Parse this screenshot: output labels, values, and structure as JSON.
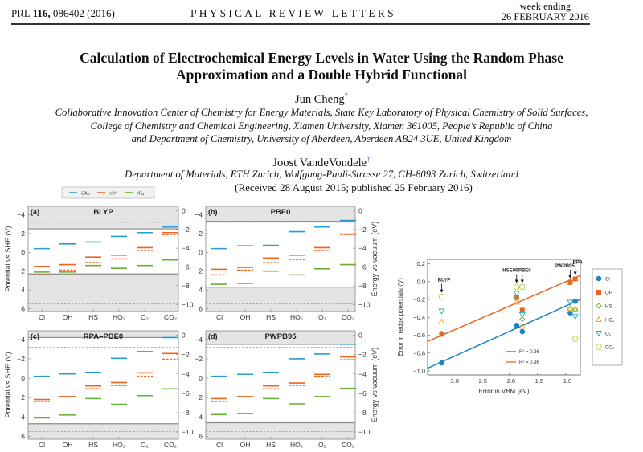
{
  "header": {
    "journal_ref_prefix": "PRL ",
    "volume": "116,",
    "journal_ref_suffix": " 086402 (2016)",
    "journal_name": "PHYSICAL REVIEW LETTERS",
    "week_ending": "week ending",
    "date": "26 FEBRUARY 2016"
  },
  "article": {
    "title_line1": "Calculation of Electrochemical Energy Levels in Water Using the Random Phase",
    "title_line2": "Approximation and a Double Hybrid Functional",
    "author1": "Jun Cheng",
    "author1_mark": "*",
    "affil1_line1": "Collaborative Innovation Center of Chemistry for Energy Materials, State Key Laboratory of Physical Chemistry of Solid Surfaces,",
    "affil1_line2": "College of Chemistry and Chemical Engineering, Xiamen University, Xiamen 361005, People’s Republic of China",
    "affil1_line3": "and Department of Chemistry, University of Aberdeen, Aberdeen AB24 3UE, United Kingdom",
    "author2": "Joost VandeVondele",
    "author2_mark": "†",
    "affil2": "Department of Materials, ETH Zurich, Wolfgang-Pauli-Strasse 27, CH-8093 Zurich, Switzerland",
    "received": "(Received 28 August 2015; published 25 February 2016)"
  },
  "colors": {
    "blue": "#2b9bd3",
    "orange": "#f0641e",
    "green": "#66b032",
    "shade": "#e4e4e4",
    "edge": "#8a8a8a"
  },
  "chart_data": [
    {
      "type": "bar",
      "panels_shared": {
        "categories": [
          "Cl",
          "OH",
          "HS",
          "HO₂",
          "O₂",
          "CO₂"
        ],
        "ylabel": "Potential vs SHE (V)",
        "y2label": "Energy vs vacuum (eV)",
        "yticks": [
          -4,
          -2,
          0,
          2,
          4,
          6
        ],
        "y2ticks": [
          0,
          -2,
          -4,
          -6,
          -8,
          -10
        ],
        "ylim": [
          -4.9,
          6.3
        ],
        "legend": [
          {
            "label": "−EA",
            "sub": "O",
            "color": "#2b9bd3"
          },
          {
            "label": "−eU°",
            "sub": "",
            "color": "#f0641e"
          },
          {
            "label": "−IP",
            "sub": "R",
            "color": "#66b032"
          }
        ],
        "legend_placement": "top",
        "dashed_levels": [
          -3.2,
          5.5
        ]
      },
      "panels": [
        {
          "tag": "(a)",
          "title": "BLYP",
          "cbm": -2.5,
          "vbm": 2.3,
          "neg_EA_O": [
            -0.4,
            -0.9,
            -1.1,
            -1.7,
            -2.1,
            -2.7
          ],
          "neg_eU": [
            1.5,
            1.3,
            0.5,
            0.3,
            -0.5,
            -2.1
          ],
          "neg_eU_dashed": [
            2.4,
            1.9,
            1.1,
            0.7,
            -0.2,
            -1.9
          ],
          "neg_IP_R": [
            2.1,
            2.1,
            1.4,
            1.7,
            1.4,
            0.8
          ]
        },
        {
          "tag": "(b)",
          "title": "PBE0",
          "cbm": -3.3,
          "vbm": 3.7,
          "neg_EA_O": [
            -0.4,
            -0.7,
            -0.75,
            -2.2,
            -2.7,
            -3.4
          ],
          "neg_eU": [
            1.8,
            1.6,
            0.6,
            0.3,
            -0.5,
            -1.95
          ],
          "neg_eU_dashed": [
            2.4,
            1.9,
            1.1,
            0.75,
            -0.2,
            -1.9
          ],
          "neg_IP_R": [
            3.4,
            3.3,
            2.0,
            2.4,
            1.75,
            1.3
          ]
        },
        {
          "tag": "(c)",
          "title": "RPA–PBE0",
          "cbm": -4.2,
          "vbm": 4.7,
          "neg_EA_O": [
            -0.2,
            -0.45,
            -0.6,
            -2.05,
            -2.75,
            -4.2
          ],
          "neg_eU": [
            2.2,
            1.9,
            0.8,
            0.45,
            -0.55,
            -2.55
          ],
          "neg_eU_dashed": [
            2.4,
            1.9,
            1.1,
            0.75,
            -0.2,
            -1.95
          ],
          "neg_IP_R": [
            4.1,
            3.8,
            2.1,
            2.7,
            1.8,
            1.1
          ]
        },
        {
          "tag": "(d)",
          "title": "PWPB95",
          "cbm": -3.5,
          "vbm": 4.6,
          "neg_EA_O": [
            -0.2,
            -0.4,
            -0.6,
            -2.0,
            -2.5,
            -3.5
          ],
          "neg_eU": [
            2.1,
            1.9,
            0.8,
            0.5,
            -0.4,
            -2.2
          ],
          "neg_eU_dashed": [
            2.4,
            1.9,
            1.1,
            0.75,
            -0.2,
            -1.9
          ],
          "neg_IP_R": [
            3.75,
            3.65,
            2.1,
            2.65,
            1.9,
            1.05
          ]
        }
      ]
    },
    {
      "type": "scatter",
      "xlabel": "Error in VBM (eV)",
      "ylabel": "Error in redox potentials (V)",
      "xlim": [
        -3.45,
        -0.74
      ],
      "ylim": [
        -1.045,
        0.25
      ],
      "xticks": [
        -3.0,
        -2.5,
        -2.0,
        -1.5,
        -1.0
      ],
      "yticks": [
        0.2,
        0.0,
        -0.2,
        -0.4,
        -0.6,
        -0.8,
        -1.0
      ],
      "legend_placement": "right-outside",
      "functionals": [
        {
          "name": "BLYP",
          "x": -3.2
        },
        {
          "name": "HSE06",
          "x": -1.87
        },
        {
          "name": "PBE0",
          "x": -1.77
        },
        {
          "name": "PWPB95",
          "x": -0.92
        },
        {
          "name": "RPA",
          "x": -0.83
        }
      ],
      "series": [
        {
          "name": "Cl",
          "marker": "filled-circle",
          "color": "#1a85c4",
          "y": [
            -0.91,
            -0.49,
            -0.56,
            -0.35,
            -0.22
          ]
        },
        {
          "name": "OH",
          "marker": "filled-square",
          "color": "#f0641e",
          "y": [
            -0.59,
            -0.18,
            -0.32,
            -0.01,
            0.03
          ]
        },
        {
          "name": "HS",
          "marker": "open-diamond",
          "color": "#66b032",
          "y": [
            -0.58,
            -0.18,
            -0.42,
            -0.31,
            -0.31
          ]
        },
        {
          "name": "HO₂",
          "marker": "open-triangle-up",
          "color": "#f0a030",
          "y": [
            -0.45,
            -0.23,
            -0.5,
            -0.3,
            -0.31
          ]
        },
        {
          "name": "O₂",
          "marker": "open-triangle-down",
          "color": "#2aa8b8",
          "y": [
            -0.33,
            -0.13,
            -0.37,
            -0.23,
            -0.39
          ]
        },
        {
          "name": "CO₂",
          "marker": "open-circle",
          "color": "#b8cc40",
          "y": [
            -0.17,
            -0.06,
            -0.06,
            -0.31,
            -0.64
          ]
        }
      ],
      "fits": [
        {
          "label": "R² = 0.96",
          "color": "#1a85c4",
          "x": [
            -3.45,
            -0.74
          ],
          "y": [
            -0.97,
            -0.2
          ]
        },
        {
          "label": "R² = 0.96",
          "color": "#f0641e",
          "x": [
            -3.45,
            -0.74
          ],
          "y": [
            -0.67,
            0.07
          ]
        }
      ]
    }
  ]
}
